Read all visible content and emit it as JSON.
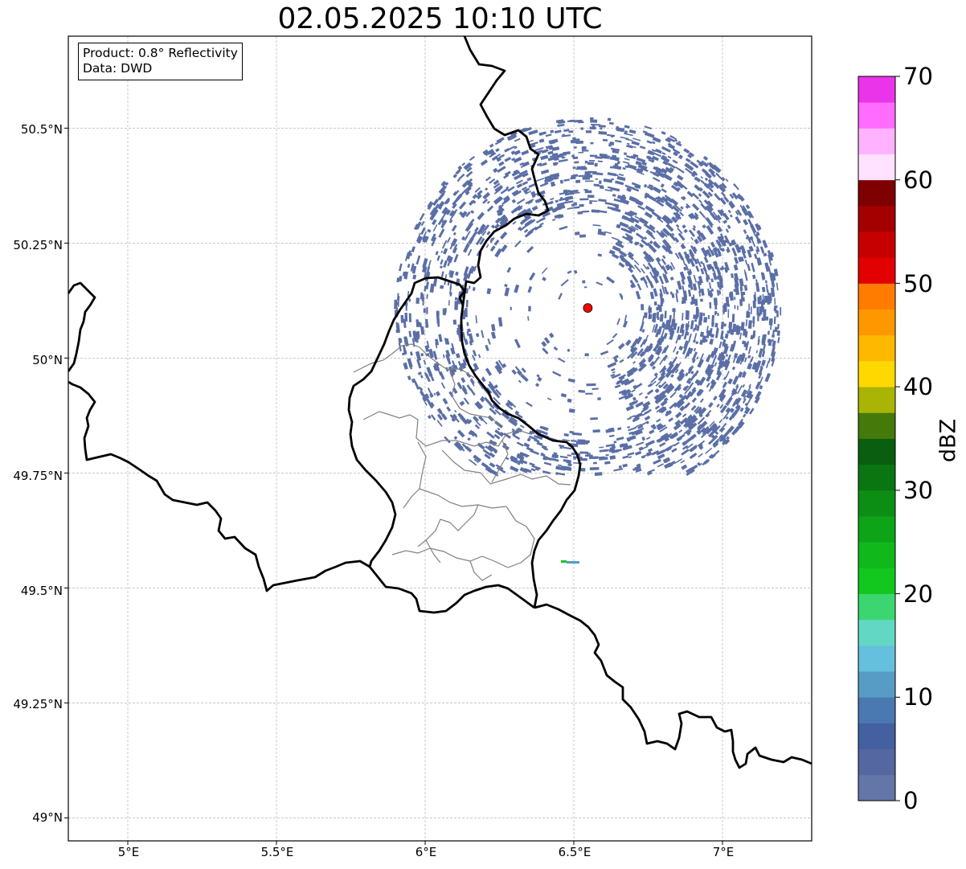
{
  "title": "02.05.2025 10:10 UTC",
  "info": {
    "product": "Product: 0.8° Reflectivity",
    "data_source": "Data: DWD"
  },
  "axes": {
    "x_ticks": [
      "5°E",
      "5.5°E",
      "6°E",
      "6.5°E",
      "7°E"
    ],
    "y_ticks": [
      "50.5°N",
      "50.25°N",
      "50°N",
      "49.75°N",
      "49.5°N",
      "49.25°N",
      "49°N"
    ],
    "lon_range": [
      4.8,
      7.3
    ],
    "lat_range": [
      48.95,
      50.7
    ],
    "grid": true
  },
  "radar_site": {
    "lon": 6.547,
    "lat": 50.109,
    "color": "#ff0000"
  },
  "colorbar": {
    "label": "dBZ",
    "range": [
      0,
      70
    ],
    "ticks": [
      "0",
      "10",
      "20",
      "30",
      "40",
      "50",
      "60",
      "70"
    ],
    "step_dbz": 2.5,
    "colors": [
      "#6476a8",
      "#5467a0",
      "#4460a0",
      "#4a78b0",
      "#579cc5",
      "#64c0dc",
      "#62d8c4",
      "#3cd670",
      "#12c81e",
      "#10b81c",
      "#0ea418",
      "#0c8e14",
      "#0a7612",
      "#0a5e10",
      "#457a0a",
      "#aab404",
      "#ffd800",
      "#ffb800",
      "#ff9800",
      "#ff7c00",
      "#e20000",
      "#c60000",
      "#a40000",
      "#7e0000",
      "#ffe2ff",
      "#ffb2ff",
      "#ff6cff",
      "#ea34ea"
    ]
  },
  "echo_color": "#5b6fa6"
}
